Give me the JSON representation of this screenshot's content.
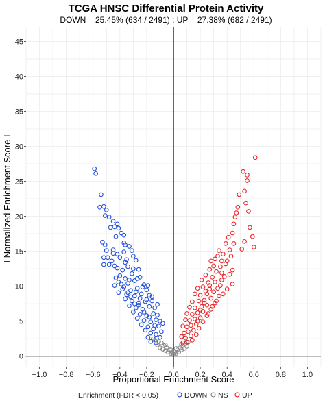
{
  "chart_data": {
    "type": "scatter",
    "title": "TCGA HNSC Differential Protein Activity",
    "subtitle": "DOWN = 25.45% (634 / 2491) : UP = 27.38% (682 / 2491)",
    "xlabel": "Proportional Enrichment Score",
    "ylabel": "I Normalized Enrichment Score I",
    "xlim": [
      -1.1,
      1.1
    ],
    "ylim": [
      -1.5,
      47
    ],
    "x_ticks": [
      "−1.0",
      "−0.8",
      "−0.6",
      "−0.4",
      "−0.2",
      "0.0",
      "0.2",
      "0.4",
      "0.6",
      "0.8",
      "1.0"
    ],
    "x_tick_values": [
      -1.0,
      -0.8,
      -0.6,
      -0.4,
      -0.2,
      0.0,
      0.2,
      0.4,
      0.6,
      0.8,
      1.0
    ],
    "y_ticks": [
      "0",
      "5",
      "10",
      "15",
      "20",
      "25",
      "30",
      "35",
      "40",
      "45"
    ],
    "y_tick_values": [
      0,
      5,
      10,
      15,
      20,
      25,
      30,
      35,
      40,
      45
    ],
    "grid": true,
    "legend_position": "bottom",
    "legend_title": "Enrichment (FDR < 0.05)",
    "series": [
      {
        "name": "DOWN",
        "color": "#2250d8",
        "points": [
          [
            -0.59,
            26.8
          ],
          [
            -0.58,
            26.1
          ],
          [
            -0.54,
            23.1
          ],
          [
            -0.52,
            21.4
          ],
          [
            -0.55,
            21.3
          ],
          [
            -0.5,
            20.9
          ],
          [
            -0.48,
            19.9
          ],
          [
            -0.51,
            20.1
          ],
          [
            -0.45,
            19.3
          ],
          [
            -0.47,
            18.4
          ],
          [
            -0.42,
            18.9
          ],
          [
            -0.44,
            18.5
          ],
          [
            -0.41,
            18.3
          ],
          [
            -0.43,
            17.1
          ],
          [
            -0.39,
            17.6
          ],
          [
            -0.37,
            17.3
          ],
          [
            -0.37,
            16.2
          ],
          [
            -0.36,
            15.9
          ],
          [
            -0.51,
            15.9
          ],
          [
            -0.5,
            15.1
          ],
          [
            -0.53,
            16.3
          ],
          [
            -0.45,
            15.2
          ],
          [
            -0.42,
            14.6
          ],
          [
            -0.37,
            14.9
          ],
          [
            -0.33,
            15.7
          ],
          [
            -0.31,
            15.1
          ],
          [
            -0.49,
            14.1
          ],
          [
            -0.45,
            14.7
          ],
          [
            -0.4,
            14.1
          ],
          [
            -0.52,
            14.1
          ],
          [
            -0.52,
            13.1
          ],
          [
            -0.36,
            13.4
          ],
          [
            -0.3,
            14.3
          ],
          [
            -0.28,
            13.7
          ],
          [
            -0.34,
            12.8
          ],
          [
            -0.42,
            12.6
          ],
          [
            -0.38,
            12.3
          ],
          [
            -0.48,
            13.1
          ],
          [
            -0.46,
            13.6
          ],
          [
            -0.44,
            12.9
          ],
          [
            -0.31,
            11.8
          ],
          [
            -0.26,
            12.4
          ],
          [
            -0.25,
            11.3
          ],
          [
            -0.4,
            11.5
          ],
          [
            -0.43,
            11.2
          ],
          [
            -0.36,
            11.1
          ],
          [
            -0.41,
            10.6
          ],
          [
            -0.34,
            10.4
          ],
          [
            -0.29,
            10.8
          ],
          [
            -0.22,
            10.2
          ],
          [
            -0.44,
            10.1
          ],
          [
            -0.38,
            9.6
          ],
          [
            -0.32,
            9.4
          ],
          [
            -0.27,
            9.7
          ],
          [
            -0.2,
            9.5
          ],
          [
            -0.41,
            9.1
          ],
          [
            -0.35,
            8.8
          ],
          [
            -0.29,
            8.6
          ],
          [
            -0.24,
            8.9
          ],
          [
            -0.18,
            8.7
          ],
          [
            -0.36,
            8.2
          ],
          [
            -0.31,
            7.9
          ],
          [
            -0.26,
            7.6
          ],
          [
            -0.21,
            7.8
          ],
          [
            -0.16,
            7.9
          ],
          [
            -0.33,
            7.2
          ],
          [
            -0.28,
            6.9
          ],
          [
            -0.23,
            6.7
          ],
          [
            -0.18,
            7.1
          ],
          [
            -0.14,
            6.9
          ],
          [
            -0.3,
            6.3
          ],
          [
            -0.25,
            6.0
          ],
          [
            -0.2,
            5.8
          ],
          [
            -0.15,
            6.1
          ],
          [
            -0.12,
            5.9
          ],
          [
            -0.27,
            5.4
          ],
          [
            -0.22,
            5.1
          ],
          [
            -0.17,
            4.9
          ],
          [
            -0.13,
            5.2
          ],
          [
            -0.1,
            5.0
          ],
          [
            -0.24,
            4.5
          ],
          [
            -0.19,
            4.2
          ],
          [
            -0.15,
            3.9
          ],
          [
            -0.11,
            4.3
          ],
          [
            -0.21,
            3.7
          ],
          [
            -0.17,
            3.3
          ],
          [
            -0.13,
            3.1
          ],
          [
            -0.09,
            3.5
          ],
          [
            -0.19,
            2.7
          ],
          [
            -0.15,
            2.5
          ],
          [
            -0.1,
            2.7
          ],
          [
            -0.17,
            2.1
          ],
          [
            -0.13,
            1.9
          ],
          [
            -0.39,
            10.3
          ],
          [
            -0.37,
            9.9
          ],
          [
            -0.33,
            10.9
          ],
          [
            -0.3,
            12.5
          ],
          [
            -0.27,
            11.1
          ],
          [
            -0.35,
            13.8
          ],
          [
            -0.28,
            9.2
          ],
          [
            -0.23,
            9.9
          ],
          [
            -0.19,
            10.1
          ],
          [
            -0.25,
            8.3
          ],
          [
            -0.2,
            8.1
          ],
          [
            -0.16,
            8.5
          ],
          [
            -0.12,
            7.4
          ],
          [
            -0.22,
            6.3
          ],
          [
            -0.18,
            5.6
          ],
          [
            -0.08,
            4.7
          ],
          [
            -0.14,
            4.4
          ],
          [
            -0.26,
            7.3
          ],
          [
            -0.32,
            8.5
          ],
          [
            -0.29,
            7.5
          ],
          [
            -0.34,
            9.1
          ]
        ]
      },
      {
        "name": "NS",
        "color": "#8a8a8a",
        "points": [
          [
            -0.12,
            1.6
          ],
          [
            -0.1,
            1.2
          ],
          [
            -0.09,
            1.9
          ],
          [
            -0.08,
            1.0
          ],
          [
            -0.07,
            1.5
          ],
          [
            -0.06,
            0.8
          ],
          [
            -0.05,
            1.2
          ],
          [
            -0.04,
            0.6
          ],
          [
            -0.03,
            0.9
          ],
          [
            -0.02,
            0.4
          ],
          [
            -0.01,
            0.6
          ],
          [
            0.0,
            0.3
          ],
          [
            0.01,
            0.6
          ],
          [
            0.02,
            0.4
          ],
          [
            0.03,
            0.9
          ],
          [
            0.04,
            0.6
          ],
          [
            0.05,
            1.2
          ],
          [
            0.06,
            0.9
          ],
          [
            0.07,
            1.5
          ],
          [
            0.08,
            1.1
          ],
          [
            0.09,
            1.8
          ],
          [
            0.1,
            1.4
          ],
          [
            -0.11,
            2.1
          ],
          [
            0.11,
            2.0
          ],
          [
            -0.06,
            1.6
          ],
          [
            0.06,
            1.7
          ],
          [
            -0.02,
            0.9
          ],
          [
            0.02,
            1.1
          ],
          [
            0.0,
            0.7
          ],
          [
            -0.14,
            2.3
          ]
        ]
      },
      {
        "name": "UP",
        "color": "#e8262a",
        "points": [
          [
            0.61,
            28.4
          ],
          [
            0.52,
            26.4
          ],
          [
            0.55,
            25.9
          ],
          [
            0.55,
            25.1
          ],
          [
            0.53,
            23.6
          ],
          [
            0.54,
            21.9
          ],
          [
            0.56,
            20.7
          ],
          [
            0.48,
            21.3
          ],
          [
            0.46,
            19.9
          ],
          [
            0.45,
            18.9
          ],
          [
            0.44,
            17.6
          ],
          [
            0.57,
            18.4
          ],
          [
            0.59,
            17.1
          ],
          [
            0.6,
            15.6
          ],
          [
            0.53,
            16.4
          ],
          [
            0.51,
            15.3
          ],
          [
            0.41,
            17.0
          ],
          [
            0.39,
            16.1
          ],
          [
            0.42,
            15.2
          ],
          [
            0.37,
            14.6
          ],
          [
            0.33,
            14.3
          ],
          [
            0.45,
            16.1
          ],
          [
            0.36,
            13.6
          ],
          [
            0.31,
            13.9
          ],
          [
            0.28,
            13.6
          ],
          [
            0.35,
            12.8
          ],
          [
            0.39,
            13.2
          ],
          [
            0.44,
            12.3
          ],
          [
            0.32,
            12.1
          ],
          [
            0.27,
            12.4
          ],
          [
            0.42,
            11.7
          ],
          [
            0.38,
            11.4
          ],
          [
            0.29,
            11.3
          ],
          [
            0.24,
            11.6
          ],
          [
            0.36,
            10.9
          ],
          [
            0.31,
            10.6
          ],
          [
            0.26,
            10.5
          ],
          [
            0.21,
            10.9
          ],
          [
            0.44,
            10.3
          ],
          [
            0.35,
            10.1
          ],
          [
            0.33,
            9.7
          ],
          [
            0.27,
            9.6
          ],
          [
            0.22,
            9.9
          ],
          [
            0.18,
            9.7
          ],
          [
            0.3,
            9.2
          ],
          [
            0.25,
            8.9
          ],
          [
            0.2,
            8.7
          ],
          [
            0.16,
            8.9
          ],
          [
            0.34,
            8.6
          ],
          [
            0.28,
            8.3
          ],
          [
            0.23,
            8.0
          ],
          [
            0.19,
            7.9
          ],
          [
            0.14,
            7.8
          ],
          [
            0.31,
            7.6
          ],
          [
            0.25,
            7.3
          ],
          [
            0.21,
            7.1
          ],
          [
            0.16,
            6.9
          ],
          [
            0.12,
            7.0
          ],
          [
            0.28,
            6.7
          ],
          [
            0.22,
            6.4
          ],
          [
            0.18,
            6.2
          ],
          [
            0.14,
            6.0
          ],
          [
            0.1,
            6.1
          ],
          [
            0.25,
            5.8
          ],
          [
            0.2,
            5.5
          ],
          [
            0.16,
            5.3
          ],
          [
            0.12,
            5.1
          ],
          [
            0.09,
            5.2
          ],
          [
            0.22,
            4.9
          ],
          [
            0.17,
            4.6
          ],
          [
            0.13,
            4.4
          ],
          [
            0.1,
            4.2
          ],
          [
            0.07,
            4.3
          ],
          [
            0.19,
            4.0
          ],
          [
            0.15,
            3.7
          ],
          [
            0.11,
            3.5
          ],
          [
            0.08,
            3.3
          ],
          [
            0.17,
            3.1
          ],
          [
            0.13,
            2.9
          ],
          [
            0.09,
            2.6
          ],
          [
            0.06,
            2.8
          ],
          [
            0.14,
            2.3
          ],
          [
            0.1,
            2.0
          ],
          [
            0.07,
            1.9
          ],
          [
            0.36,
            11.9
          ],
          [
            0.4,
            13.6
          ],
          [
            0.3,
            12.9
          ],
          [
            0.34,
            15.1
          ],
          [
            0.37,
            8.9
          ],
          [
            0.4,
            9.6
          ],
          [
            0.32,
            7.9
          ],
          [
            0.27,
            10.1
          ],
          [
            0.24,
            9.3
          ],
          [
            0.29,
            7.1
          ],
          [
            0.2,
            6.6
          ],
          [
            0.26,
            6.1
          ],
          [
            0.18,
            5.0
          ],
          [
            0.23,
            7.6
          ],
          [
            0.47,
            20.5
          ],
          [
            0.43,
            14.3
          ],
          [
            0.49,
            23.1
          ]
        ]
      }
    ]
  }
}
